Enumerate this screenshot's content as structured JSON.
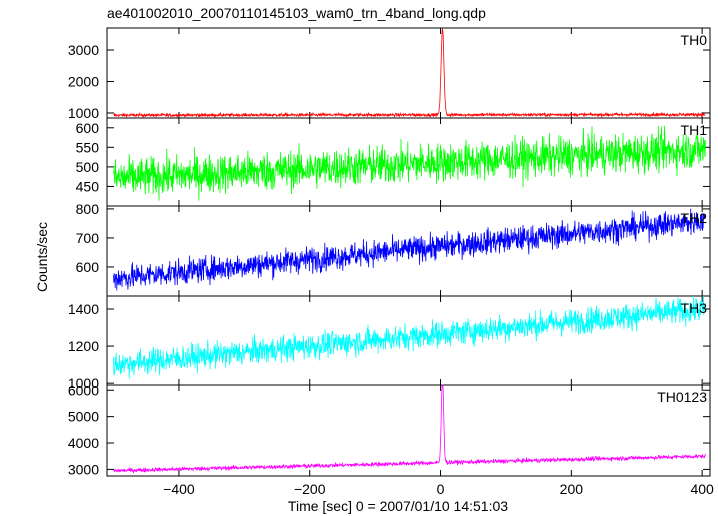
{
  "title": "ae401002010_20070110145103_wam0_trn_4band_long.qdp",
  "xlabel": "Time [sec] 0 = 2007/01/10 14:51:03",
  "ylabel": "Counts/sec",
  "chart_data": {
    "type": "line",
    "xlim": [
      -510,
      412
    ],
    "xticks": [
      -400,
      -200,
      0,
      200,
      400
    ],
    "x_start": -500,
    "x_end": 405,
    "x_step": 0.5,
    "grid": false,
    "panels": [
      {
        "name": "TH0",
        "color": "#ff0000",
        "ylim": [
          840,
          3700
        ],
        "yticks": [
          1000,
          2000,
          3000
        ],
        "baseline_start": 930,
        "baseline_end": 950,
        "noise": 25,
        "peak": 3700,
        "peak_x": 3,
        "peak_width": 3
      },
      {
        "name": "TH1",
        "color": "#00ff00",
        "ylim": [
          400,
          625
        ],
        "yticks": [
          450,
          500,
          550,
          600
        ],
        "baseline_start": 470,
        "baseline_end": 545,
        "noise": 25,
        "peak": 0,
        "peak_x": 0,
        "peak_width": 0
      },
      {
        "name": "TH2",
        "color": "#0000ff",
        "ylim": [
          500,
          810
        ],
        "yticks": [
          600,
          700,
          800
        ],
        "baseline_start": 560,
        "baseline_end": 760,
        "noise": 22,
        "peak": 0,
        "peak_x": 0,
        "peak_width": 0
      },
      {
        "name": "TH3",
        "color": "#00ffff",
        "ylim": [
          990,
          1470
        ],
        "yticks": [
          1000,
          1200,
          1400
        ],
        "baseline_start": 1100,
        "baseline_end": 1400,
        "noise": 35,
        "peak": 0,
        "peak_x": 0,
        "peak_width": 0
      },
      {
        "name": "TH0123",
        "color": "#ff00ff",
        "ylim": [
          2750,
          6200
        ],
        "yticks": [
          3000,
          4000,
          5000,
          6000
        ],
        "baseline_start": 2950,
        "baseline_end": 3500,
        "noise": 40,
        "peak": 6200,
        "peak_x": 3,
        "peak_width": 2.5
      }
    ]
  }
}
